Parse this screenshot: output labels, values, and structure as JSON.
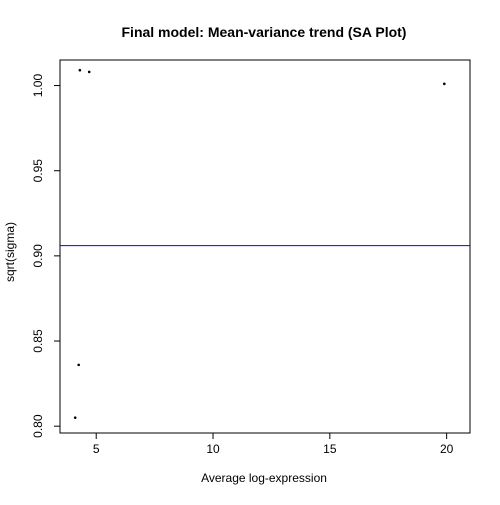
{
  "chart_data": {
    "type": "scatter",
    "title": "Final model: Mean-variance trend (SA Plot)",
    "xlabel": "Average log-expression",
    "ylabel": "sqrt(sigma)",
    "xlim": [
      3.45,
      21.0
    ],
    "ylim": [
      0.796,
      1.015
    ],
    "x_ticks": [
      5,
      10,
      15,
      20
    ],
    "x_tick_labels": [
      "5",
      "10",
      "15",
      "20"
    ],
    "y_ticks": [
      0.8,
      0.85,
      0.9,
      0.95,
      1.0
    ],
    "y_tick_labels": [
      "0.80",
      "0.85",
      "0.90",
      "0.95",
      "1.00"
    ],
    "grid": false,
    "points": [
      {
        "x": 4.1,
        "y": 0.805
      },
      {
        "x": 4.25,
        "y": 0.836
      },
      {
        "x": 4.3,
        "y": 1.009
      },
      {
        "x": 4.7,
        "y": 1.008
      },
      {
        "x": 19.9,
        "y": 1.001
      }
    ],
    "trend_line": {
      "y": 0.906,
      "color": "#0000ff"
    },
    "point_color": "#000000"
  }
}
